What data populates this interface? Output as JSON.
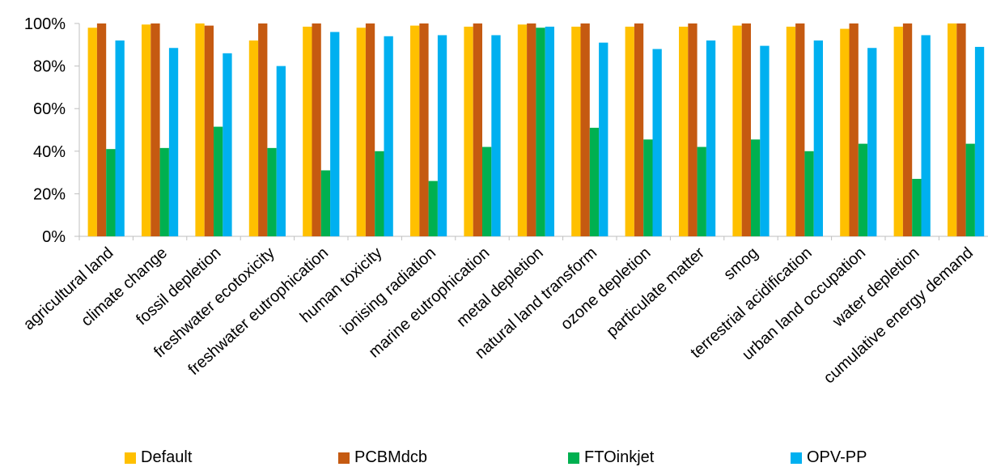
{
  "chart_data": {
    "type": "bar",
    "categories": [
      "agricultural land",
      "climate change",
      "fossil depletion",
      "freshwater ecotoxicity",
      "freshwater eutrophication",
      "human toxicity",
      "ionising radiation",
      "marine eutrophication",
      "metal depletion",
      "natural land transform",
      "ozone depletion",
      "particulate matter",
      "smog",
      "terrestrial acidification",
      "urban land occupation",
      "water depletion",
      "cumulative energy demand"
    ],
    "series": [
      {
        "name": "Default",
        "color": "#FFC000",
        "values": [
          98,
          99.5,
          100,
          92,
          98.5,
          98,
          99,
          98.5,
          99.5,
          98.5,
          98.5,
          98.5,
          99,
          98.5,
          97.5,
          98.5,
          100
        ]
      },
      {
        "name": "PCBMdcb",
        "color": "#C55A11",
        "values": [
          100,
          100,
          99,
          100,
          100,
          100,
          100,
          100,
          100,
          100,
          100,
          100,
          100,
          100,
          100,
          100,
          100
        ]
      },
      {
        "name": "FTOinkjet",
        "color": "#00B050",
        "values": [
          41,
          41.5,
          51.5,
          41.5,
          31,
          40,
          26,
          42,
          98,
          51,
          45.5,
          42,
          45.5,
          40,
          43.5,
          27,
          43.5
        ]
      },
      {
        "name": "OPV-PP",
        "color": "#00B0F0",
        "values": [
          92,
          88.5,
          86,
          80,
          96,
          94,
          94.5,
          94.5,
          98.5,
          91,
          88,
          92,
          89.5,
          92,
          88.5,
          94.5,
          89
        ]
      }
    ],
    "y_ticks": [
      "0%",
      "20%",
      "40%",
      "60%",
      "80%",
      "100%"
    ],
    "ylim": [
      0,
      100
    ],
    "xlabel": "",
    "ylabel": "",
    "title": "",
    "grid": false,
    "legend_position": "bottom"
  }
}
